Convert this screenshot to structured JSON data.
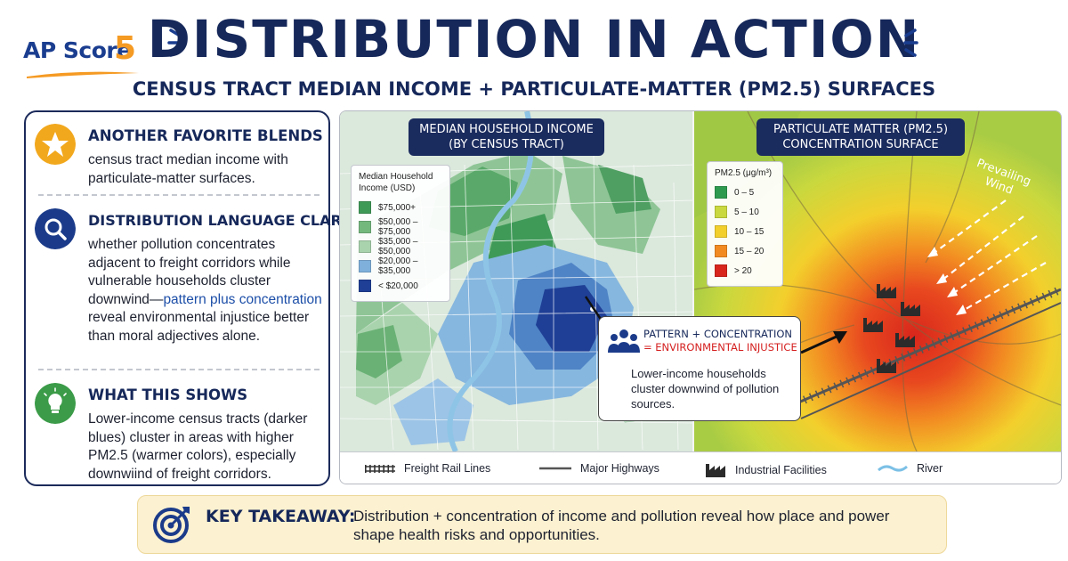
{
  "header": {
    "logo_text": "AP Score",
    "logo_number": "5",
    "title": "DISTRIBUTION IN ACTION",
    "subtitle": "CENSUS TRACT MEDIAN INCOME + PARTICULATE-MATTER (PM2.5) SURFACES"
  },
  "left_panel": {
    "blocks": [
      {
        "icon": "star-icon",
        "title": "ANOTHER FAVORITE BLENDS",
        "text": "census tract median income with particulate-matter surfaces."
      },
      {
        "icon": "search-icon",
        "title": "DISTRIBUTION LANGUAGE CLARIFIES",
        "text_before": "whether pollution concentrates adjacent to freight corridors while vulnerable households cluster downwind—",
        "text_highlight": "pattern plus concentration",
        "text_after": " reveal environmental injustice better than moral adjectives alone."
      },
      {
        "icon": "lightbulb-icon",
        "title": "WHAT THIS SHOWS",
        "text": "Lower-income census tracts (darker blues) cluster in areas with higher PM2.5 (warmer colors), especially downwiind of freight corridors."
      }
    ]
  },
  "income_map": {
    "title_line1": "MEDIAN HOUSEHOLD INCOME",
    "title_line2": "(BY CENSUS TRACT)",
    "legend_title": "Median Household Income (USD)",
    "legend": [
      {
        "label": "$75,000+",
        "color": "#3f9a58"
      },
      {
        "label": "$50,000 – $75,000",
        "color": "#74b87e"
      },
      {
        "label": "$35,000 – $50,000",
        "color": "#a9d3ad"
      },
      {
        "label": "$20,000 – $35,000",
        "color": "#7fb0dc"
      },
      {
        "label": "< $20,000",
        "color": "#1f3f96"
      }
    ]
  },
  "pm_map": {
    "title_line1": "PARTICULATE MATTER (PM2.5)",
    "title_line2": "CONCENTRATION SURFACE",
    "legend_title": "PM2.5 (μg/m³)",
    "legend": [
      {
        "label": "0 – 5",
        "color": "#2e9a4f"
      },
      {
        "label": "5 – 10",
        "color": "#c9d83e"
      },
      {
        "label": "10 – 15",
        "color": "#f3cf2c"
      },
      {
        "label": "15 – 20",
        "color": "#f28a22"
      },
      {
        "label": "> 20",
        "color": "#d8261c"
      }
    ],
    "wind_label_line1": "Prevailing",
    "wind_label_line2": "Wind"
  },
  "callout": {
    "title_line1": "PATTERN + CONCENTRATION",
    "title_line2": "= ENVIRONMENTAL INJUSTICE",
    "text": "Lower-income households cluster downwind of pollution sources."
  },
  "map_key": [
    {
      "icon": "rail-line-icon",
      "label": "Freight Rail Lines"
    },
    {
      "icon": "highway-icon",
      "label": "Major Highways"
    },
    {
      "icon": "factory-icon",
      "label": "Industrial Facilities"
    },
    {
      "icon": "river-icon",
      "label": "River"
    }
  ],
  "takeaway": {
    "label": "KEY TAKEAWAY:",
    "text": "Distribution + concentration of income and pollution reveal how place and power shape health risks and opportunities."
  },
  "colors": {
    "navy": "#16285a",
    "accent_orange": "#f59a23",
    "highlight_blue": "#1d4fa8",
    "alert_red": "#d52020"
  }
}
